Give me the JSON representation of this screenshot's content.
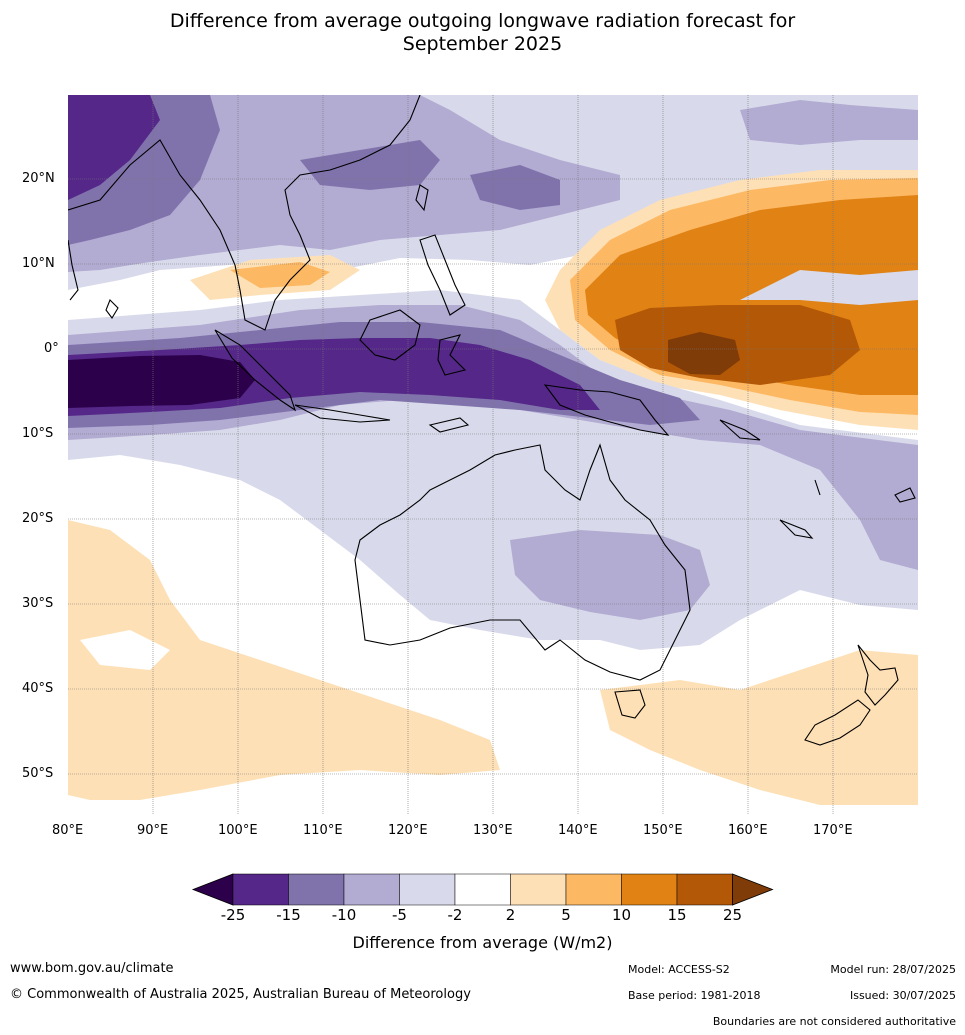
{
  "title_line1": "Difference from average outgoing longwave radiation forecast for",
  "title_line2": "September 2025",
  "lat_labels": [
    "20°N",
    "10°N",
    "0°",
    "10°S",
    "20°S",
    "30°S",
    "40°S",
    "50°S"
  ],
  "lon_labels": [
    "80°E",
    "90°E",
    "100°E",
    "110°E",
    "120°E",
    "130°E",
    "140°E",
    "150°E",
    "160°E",
    "170°E"
  ],
  "colorbar": {
    "ticks": [
      "-25",
      "-15",
      "-10",
      "-5",
      "-2",
      "2",
      "5",
      "10",
      "15",
      "25"
    ],
    "colors": [
      "#2d004b",
      "#542788",
      "#8073ac",
      "#b2abd2",
      "#d8daeb",
      "#ffffff",
      "#fee0b6",
      "#fdb863",
      "#e08214",
      "#b35806",
      "#7f3b08"
    ],
    "label": "Difference from average (W/m2)"
  },
  "footer": {
    "website": "www.bom.gov.au/climate",
    "copyright": "© Commonwealth of Australia 2025, Australian Bureau of Meteorology",
    "model": "Model: ACCESS-S2",
    "base_period": "Base period: 1981-2018",
    "model_run": "Model run: 28/07/2025",
    "issued": "Issued: 30/07/2025",
    "boundaries": "Boundaries are not considered authoritative"
  }
}
